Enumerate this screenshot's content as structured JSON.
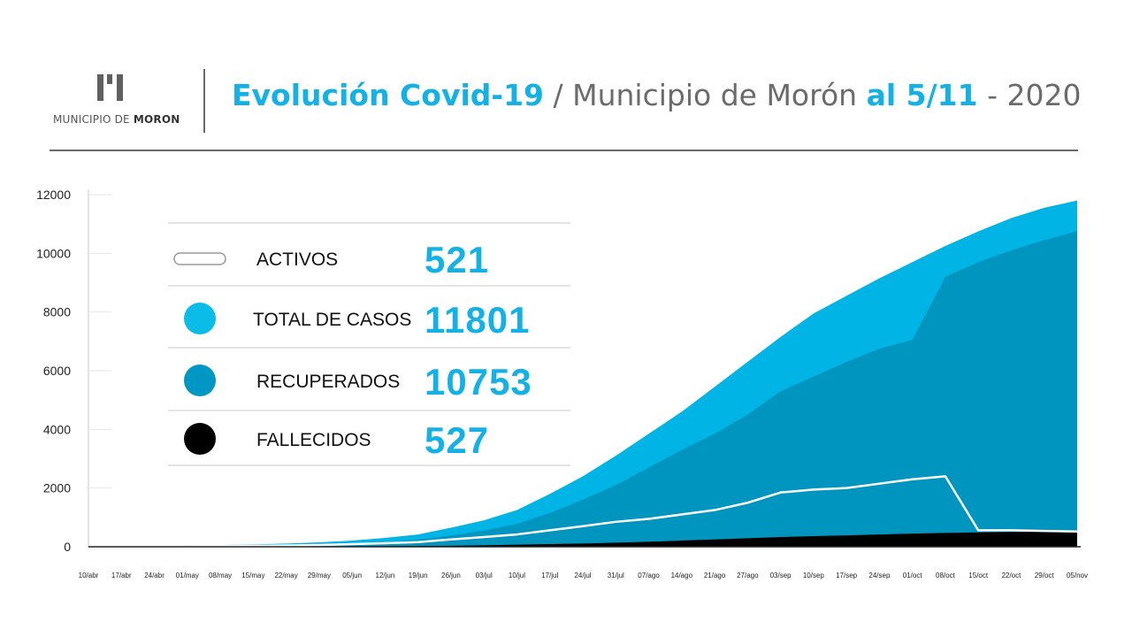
{
  "header": {
    "logo_text_light": "MUNICIPIO DE ",
    "logo_text_bold": "MORON",
    "title_main": "Evolución Covid-19",
    "title_sep1": " / ",
    "title_place": "Municipio de Morón",
    "title_space": " ",
    "title_date": "al 5/11",
    "title_sep2": " - ",
    "title_year": "2020"
  },
  "colors": {
    "total": "#00b4e6",
    "recuperados": "#0095bf",
    "fallecidos": "#000000",
    "activos": "#ffffff",
    "title_accent": "#14b1e7"
  },
  "legend": [
    {
      "label": "ACTIVOS",
      "value": "521",
      "icon": "pill-outline-icon",
      "color": "#ffffff"
    },
    {
      "label": "TOTAL DE CASOS",
      "value": "11801",
      "icon": "circle-icon",
      "color": "#0bbbe8"
    },
    {
      "label": "RECUPERADOS",
      "value": "10753",
      "icon": "circle-icon",
      "color": "#0097c4"
    },
    {
      "label": "FALLECIDOS",
      "value": "527",
      "icon": "circle-icon",
      "color": "#000000"
    }
  ],
  "chart_data": {
    "type": "area",
    "ylim": [
      0,
      12000
    ],
    "yticks": [
      0,
      2000,
      4000,
      6000,
      8000,
      10000,
      12000
    ],
    "xtick_labels": [
      "10/abr",
      "17/abr",
      "24/abr",
      "01/may",
      "08/may",
      "15/may",
      "22/may",
      "29/may",
      "05/jun",
      "12/jun",
      "19/jun",
      "26/jun",
      "03/jul",
      "10/jul",
      "17/jul",
      "24/jul",
      "31/jul",
      "07/ago",
      "14/ago",
      "21/ago",
      "27/ago",
      "03/sep",
      "10/sep",
      "17/sep",
      "24/sep",
      "01/oct",
      "08/oct",
      "15/oct",
      "22/oct",
      "29/oct",
      "05/nov"
    ],
    "series": [
      {
        "name": "TOTAL DE CASOS",
        "values": [
          20,
          30,
          40,
          50,
          60,
          80,
          110,
          150,
          210,
          300,
          420,
          650,
          900,
          1250,
          1800,
          2400,
          3100,
          3850,
          4600,
          5450,
          6300,
          7150,
          7950,
          8550,
          9150,
          9700,
          10250,
          10750,
          11200,
          11550,
          11801
        ]
      },
      {
        "name": "RECUPERADOS",
        "values": [
          5,
          10,
          15,
          25,
          35,
          45,
          60,
          80,
          110,
          160,
          240,
          380,
          550,
          780,
          1150,
          1600,
          2100,
          2700,
          3300,
          3850,
          4500,
          5300,
          5800,
          6300,
          6750,
          7050,
          9200,
          9700,
          10100,
          10450,
          10753
        ]
      },
      {
        "name": "ACTIVOS",
        "values": [
          10,
          15,
          20,
          20,
          25,
          30,
          40,
          60,
          90,
          120,
          160,
          250,
          330,
          420,
          560,
          700,
          850,
          950,
          1100,
          1250,
          1500,
          1850,
          1950,
          2000,
          2150,
          2300,
          2400,
          560,
          560,
          540,
          521
        ]
      },
      {
        "name": "FALLECIDOS",
        "values": [
          1,
          2,
          3,
          4,
          5,
          6,
          8,
          10,
          14,
          18,
          25,
          35,
          50,
          70,
          90,
          110,
          140,
          170,
          210,
          250,
          290,
          330,
          360,
          390,
          420,
          450,
          470,
          490,
          505,
          515,
          527
        ]
      }
    ]
  }
}
